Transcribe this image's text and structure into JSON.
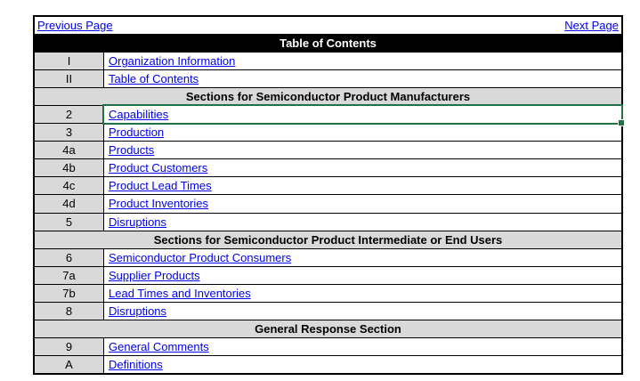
{
  "nav": {
    "previous_label": "Previous Page",
    "next_label": "Next Page"
  },
  "title_row": {
    "label": "Table of Contents"
  },
  "colors": {
    "link_blue": "#0000EE",
    "title_bar_background": "#000000",
    "title_bar_text": "#FFFFFF",
    "section_header_gray": "#D9D9D9",
    "grid_border": "#000000",
    "active_cell_green": "#217346"
  },
  "rows": [
    {
      "type": "entry",
      "num": "I",
      "label": "Organization Information"
    },
    {
      "type": "entry",
      "num": "II",
      "label": "Table of Contents"
    },
    {
      "type": "section",
      "label": "Sections for Semiconductor Product Manufacturers"
    },
    {
      "type": "entry",
      "num": "2",
      "label": "Capabilities",
      "selected": true
    },
    {
      "type": "entry",
      "num": "3",
      "label": "Production"
    },
    {
      "type": "entry",
      "num": "4a",
      "label": "Products"
    },
    {
      "type": "entry",
      "num": "4b",
      "label": "Product Customers"
    },
    {
      "type": "entry",
      "num": "4c",
      "label": "Product Lead Times"
    },
    {
      "type": "entry",
      "num": "4d",
      "label": "Product Inventories"
    },
    {
      "type": "entry",
      "num": "5",
      "label": "Disruptions"
    },
    {
      "type": "section",
      "label": "Sections for Semiconductor Product Intermediate or End Users"
    },
    {
      "type": "entry",
      "num": "6",
      "label": "Semiconductor Product Consumers"
    },
    {
      "type": "entry",
      "num": "7a",
      "label": "Supplier Products"
    },
    {
      "type": "entry",
      "num": "7b",
      "label": "Lead Times and Inventories"
    },
    {
      "type": "entry",
      "num": "8",
      "label": "Disruptions"
    },
    {
      "type": "section",
      "label": "General Response Section"
    },
    {
      "type": "entry",
      "num": "9",
      "label": "General Comments"
    },
    {
      "type": "entry",
      "num": "A",
      "label": "Definitions"
    }
  ]
}
